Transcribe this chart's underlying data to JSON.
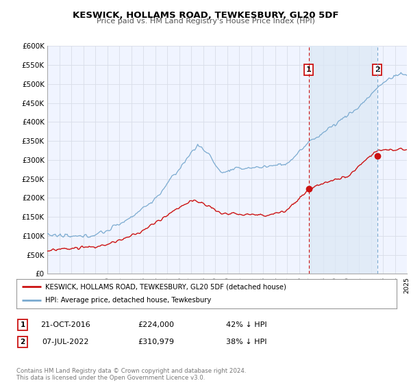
{
  "title": "KESWICK, HOLLAMS ROAD, TEWKESBURY, GL20 5DF",
  "subtitle": "Price paid vs. HM Land Registry's House Price Index (HPI)",
  "background_color": "#ffffff",
  "plot_bg_color": "#f0f4ff",
  "grid_color": "#d8dde8",
  "hpi_color": "#7aaad0",
  "price_color": "#cc1111",
  "marker_color": "#cc1111",
  "sale1_date": 2016.81,
  "sale1_price": 224000,
  "sale2_date": 2022.52,
  "sale2_price": 310979,
  "xmin": 1995,
  "xmax": 2025,
  "ymin": 0,
  "ymax": 600000,
  "yticks": [
    0,
    50000,
    100000,
    150000,
    200000,
    250000,
    300000,
    350000,
    400000,
    450000,
    500000,
    550000,
    600000
  ],
  "ytick_labels": [
    "£0",
    "£50K",
    "£100K",
    "£150K",
    "£200K",
    "£250K",
    "£300K",
    "£350K",
    "£400K",
    "£450K",
    "£500K",
    "£550K",
    "£600K"
  ],
  "legend_label_price": "KESWICK, HOLLAMS ROAD, TEWKESBURY, GL20 5DF (detached house)",
  "legend_label_hpi": "HPI: Average price, detached house, Tewkesbury",
  "annotation1_date": "21-OCT-2016",
  "annotation1_price": "£224,000",
  "annotation1_pct": "42% ↓ HPI",
  "annotation2_date": "07-JUL-2022",
  "annotation2_price": "£310,979",
  "annotation2_pct": "38% ↓ HPI",
  "footer": "Contains HM Land Registry data © Crown copyright and database right 2024.\nThis data is licensed under the Open Government Licence v3.0.",
  "shade_color": "#dce8f5"
}
